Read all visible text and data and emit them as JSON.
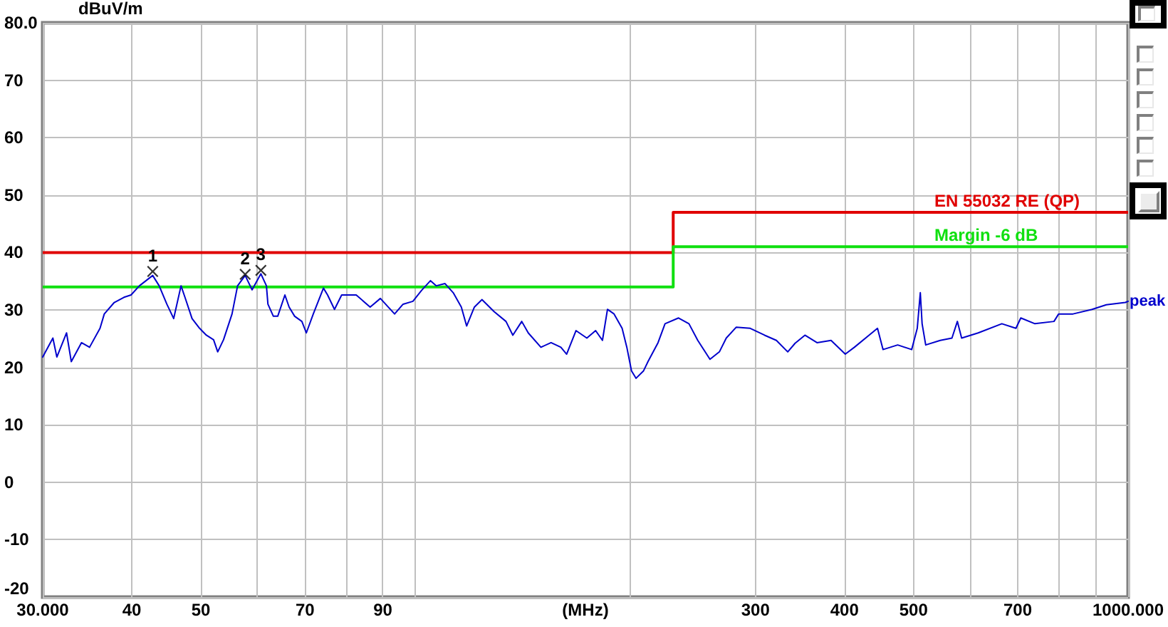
{
  "chart_data": {
    "type": "line",
    "xlabel": "(MHz)",
    "ylabel": "dBuV/m",
    "log": "x",
    "xlim": [
      30,
      1000
    ],
    "xticks": [
      {
        "value": 30,
        "label": "30.000"
      },
      40,
      50,
      {
        "value": 60,
        "label": null
      },
      70,
      {
        "value": 80,
        "label": null
      },
      90,
      {
        "value": 100,
        "label": null
      },
      {
        "value": 200,
        "label": null
      },
      300,
      400,
      500,
      {
        "value": 600,
        "label": null
      },
      700,
      {
        "value": 800,
        "label": null
      },
      {
        "value": 900,
        "label": null
      },
      {
        "value": 1000,
        "label": "1000.000"
      }
    ],
    "ylim": [
      -20,
      80
    ],
    "yticks": [
      {
        "value": 80,
        "label": "80.0"
      },
      70,
      60,
      50,
      40,
      30,
      20,
      10,
      0,
      -10,
      -20
    ],
    "grid": true,
    "annotations": [
      {
        "text": "1",
        "x": 42.8,
        "y": 36.7
      },
      {
        "text": "2",
        "x": 57.7,
        "y": 36.2
      },
      {
        "text": "3",
        "x": 60.7,
        "y": 36.9
      }
    ],
    "series": [
      {
        "name": "EN 55032 RE (QP)",
        "type": "step",
        "color": "#e00000",
        "x": [
          30,
          230,
          1000
        ],
        "values": [
          40,
          47,
          47
        ]
      },
      {
        "name": "Margin -6 dB",
        "type": "step",
        "color": "#10e010",
        "x": [
          30,
          230,
          1000
        ],
        "values": [
          34,
          41,
          41
        ]
      },
      {
        "name": "peak",
        "color": "#0000cc",
        "x": [
          30.0,
          31.0,
          31.4,
          32.4,
          32.9,
          34.0,
          34.9,
          36.1,
          36.6,
          37.8,
          39.0,
          39.9,
          41.0,
          42.8,
          43.7,
          44.8,
          45.8,
          46.9,
          47.5,
          48.6,
          49.8,
          50.9,
          52.1,
          52.8,
          53.8,
          55.3,
          56.3,
          57.7,
          59.0,
          60.7,
          61.8,
          62.1,
          63.2,
          64.1,
          65.6,
          66.5,
          67.7,
          69.3,
          70.3,
          71.9,
          74.3,
          75.3,
          77.0,
          78.8,
          82.6,
          86.4,
          89.3,
          93.5,
          96.1,
          99.2,
          102,
          105,
          107,
          110,
          113,
          116,
          118,
          121,
          124,
          129,
          134,
          137,
          141,
          144,
          150,
          155,
          160,
          163,
          168,
          174,
          179,
          183,
          186,
          190,
          195,
          198,
          201,
          204,
          209,
          212,
          219,
          224,
          234,
          242,
          249,
          259,
          267,
          273,
          282,
          295,
          309,
          321,
          333,
          341,
          352,
          366,
          383,
          401,
          413,
          433,
          445,
          453,
          475,
          497,
          506,
          511,
          514,
          520,
          545,
          566,
          576,
          584,
          616,
          665,
          696,
          707,
          740,
          787,
          799,
          837,
          890,
          932,
          991,
          1000
        ],
        "values": [
          21.8,
          25.1,
          21.8,
          26.0,
          21.0,
          24.3,
          23.5,
          26.8,
          29.3,
          31.3,
          32.2,
          32.6,
          34.2,
          36.0,
          34.2,
          31.0,
          28.5,
          34.2,
          32.2,
          28.5,
          26.8,
          25.6,
          24.8,
          22.7,
          24.8,
          29.3,
          34.2,
          36.0,
          33.5,
          36.3,
          34.2,
          31.0,
          28.9,
          28.9,
          32.6,
          30.5,
          28.9,
          28.0,
          26.0,
          29.3,
          33.8,
          32.6,
          30.1,
          32.6,
          32.6,
          30.5,
          32.0,
          29.3,
          31.0,
          31.5,
          33.4,
          35.1,
          34.2,
          34.6,
          33.0,
          30.5,
          27.2,
          30.5,
          31.8,
          29.7,
          28.0,
          25.6,
          28.0,
          26.0,
          23.5,
          24.3,
          23.5,
          22.3,
          26.4,
          25.1,
          26.4,
          24.7,
          30.1,
          29.3,
          26.8,
          23.5,
          19.4,
          18.1,
          19.4,
          21.0,
          24.3,
          27.6,
          28.6,
          27.6,
          24.7,
          21.4,
          22.7,
          25.1,
          27.0,
          26.8,
          25.6,
          24.7,
          22.7,
          24.2,
          25.6,
          24.3,
          24.7,
          22.3,
          23.5,
          25.6,
          26.8,
          23.1,
          23.9,
          23.1,
          26.8,
          33.0,
          27.6,
          23.9,
          24.7,
          25.1,
          28.0,
          25.1,
          26.0,
          27.6,
          26.8,
          28.6,
          27.6,
          28.0,
          29.3,
          29.3,
          30.1,
          30.9,
          31.3,
          31.5
        ]
      },
      {
        "type": "scatter",
        "color": "#000000",
        "marker": "cross",
        "x": [
          42.8,
          57.7,
          60.7
        ],
        "values": [
          36.7,
          36.2,
          36.9
        ]
      }
    ]
  }
}
